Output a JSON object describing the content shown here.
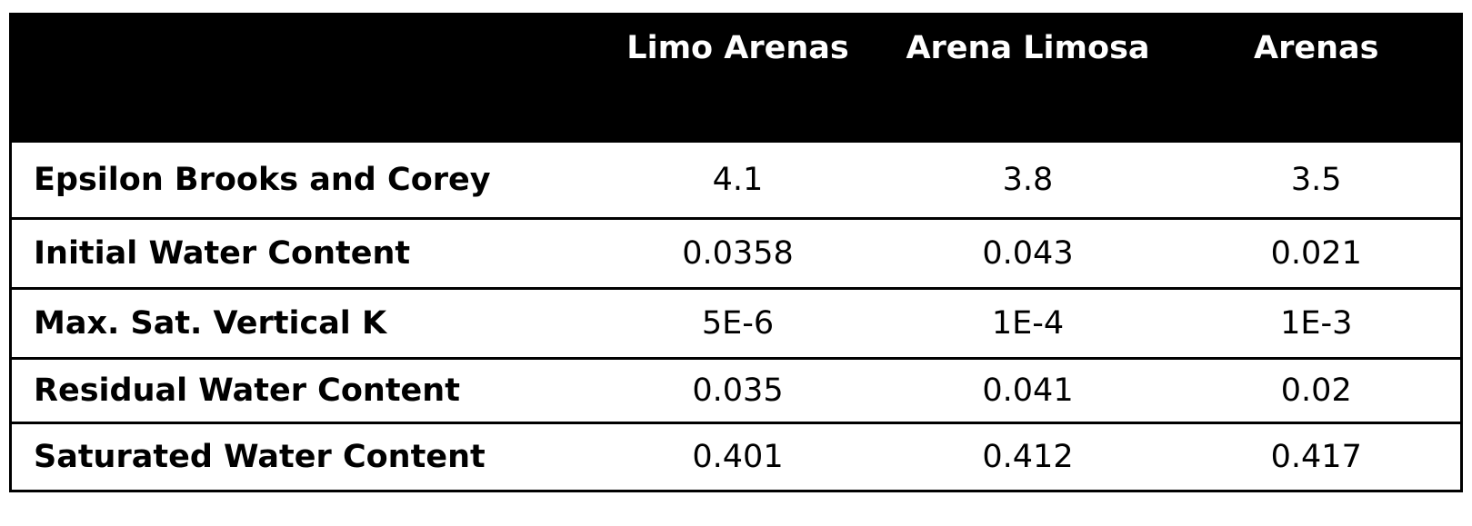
{
  "table": {
    "columns": [
      "",
      "Limo Arenas",
      "Arena Limosa",
      "Arenas"
    ],
    "rows": [
      {
        "label": "Epsilon Brooks and Corey",
        "values": [
          "4.1",
          "3.8",
          "3.5"
        ]
      },
      {
        "label": "Initial Water Content",
        "values": [
          "0.0358",
          "0.043",
          "0.021"
        ]
      },
      {
        "label": "Max. Sat. Vertical K",
        "values": [
          "5E-6",
          "1E-4",
          "1E-3"
        ]
      },
      {
        "label": "Residual Water Content",
        "values": [
          "0.035",
          "0.041",
          "0.02"
        ]
      },
      {
        "label": "Saturated Water Content",
        "values": [
          "0.401",
          "0.412",
          "0.417"
        ]
      }
    ]
  },
  "colors": {
    "header_background": "#000000",
    "header_text": "#ffffff",
    "border": "#000000"
  }
}
